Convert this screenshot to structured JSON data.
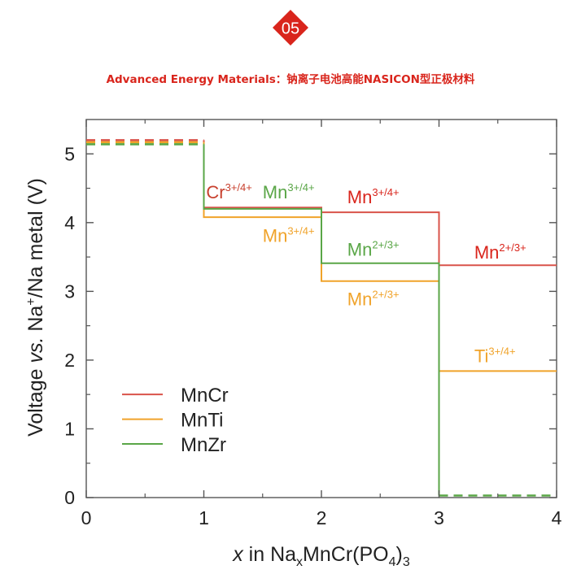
{
  "header": {
    "badge_number": "05",
    "badge_color": "#d9251c",
    "title": "Advanced Energy Materials：钠离子电池高能NASICON型正极材料"
  },
  "chart_data": {
    "type": "line",
    "xlabel": {
      "italic": "x",
      "pre": " in Na",
      "sub1": "x",
      "mid": "MnCr(PO",
      "sub2": "4",
      "post": ")",
      "sub3": "3"
    },
    "ylabel": {
      "italic_pre": "Voltage ",
      "italic": "vs.",
      "pre": " Na",
      "sup": "+",
      "post": "/Na metal (V)"
    },
    "xlim": [
      0,
      4
    ],
    "ylim": [
      0,
      5.5
    ],
    "x_ticks": [
      "0",
      "1",
      "2",
      "3",
      "4"
    ],
    "y_ticks": [
      "0",
      "1",
      "2",
      "3",
      "4",
      "5"
    ],
    "x_tick_values": [
      0,
      1,
      2,
      3,
      4
    ],
    "y_tick_values": [
      0,
      1,
      2,
      3,
      4,
      5
    ],
    "grid": false,
    "legend_position": "lower-left",
    "series": [
      {
        "name": "MnCr",
        "color": "#d9534a",
        "solid": [
          [
            1,
            5.2
          ],
          [
            1,
            4.22
          ],
          [
            2,
            4.22
          ],
          [
            2,
            4.15
          ],
          [
            3,
            4.15
          ],
          [
            3,
            3.38
          ],
          [
            4,
            3.38
          ]
        ],
        "dashed": [
          [
            0,
            5.2
          ],
          [
            1,
            5.2
          ]
        ]
      },
      {
        "name": "MnTi",
        "color": "#f0a32a",
        "solid": [
          [
            1,
            5.17
          ],
          [
            1,
            4.08
          ],
          [
            2,
            4.08
          ],
          [
            2,
            3.15
          ],
          [
            3,
            3.15
          ],
          [
            3,
            1.84
          ],
          [
            4,
            1.84
          ]
        ],
        "dashed": [
          [
            0,
            5.17
          ],
          [
            1,
            5.17
          ]
        ]
      },
      {
        "name": "MnZr",
        "color": "#5aa647",
        "solid": [
          [
            1,
            5.14
          ],
          [
            1,
            4.2
          ],
          [
            2,
            4.2
          ],
          [
            2,
            3.41
          ],
          [
            3,
            3.41
          ],
          [
            3,
            0.03
          ]
        ],
        "dashed": [
          [
            0,
            5.14
          ],
          [
            1,
            5.14
          ],
          [
            3,
            0.03
          ],
          [
            4,
            0.03
          ]
        ]
      }
    ],
    "annotations": [
      {
        "base": "Cr",
        "sup": "3+/4+",
        "color": "#c8412f",
        "x": 0.02,
        "y": 4.35
      },
      {
        "base": "Mn",
        "sup": "3+/4+",
        "color": "#5aa647",
        "x": 0.5,
        "y": 4.35
      },
      {
        "base": "Mn",
        "sup": "3+/4+",
        "color": "#d9251c",
        "x": 1.22,
        "y": 4.28
      },
      {
        "base": "Mn",
        "sup": "3+/4+",
        "color": "#f0a32a",
        "x": 0.5,
        "y": 3.72
      },
      {
        "base": "Mn",
        "sup": "2+/3+",
        "color": "#5aa647",
        "x": 1.22,
        "y": 3.52
      },
      {
        "base": "Mn",
        "sup": "2+/3+",
        "color": "#f0a32a",
        "x": 1.22,
        "y": 2.8
      },
      {
        "base": "Mn",
        "sup": "2+/3+",
        "color": "#d9251c",
        "x": 2.3,
        "y": 3.48
      },
      {
        "base": "Ti",
        "sup": "3+/4+",
        "color": "#f0a32a",
        "x": 2.3,
        "y": 1.97
      }
    ]
  }
}
